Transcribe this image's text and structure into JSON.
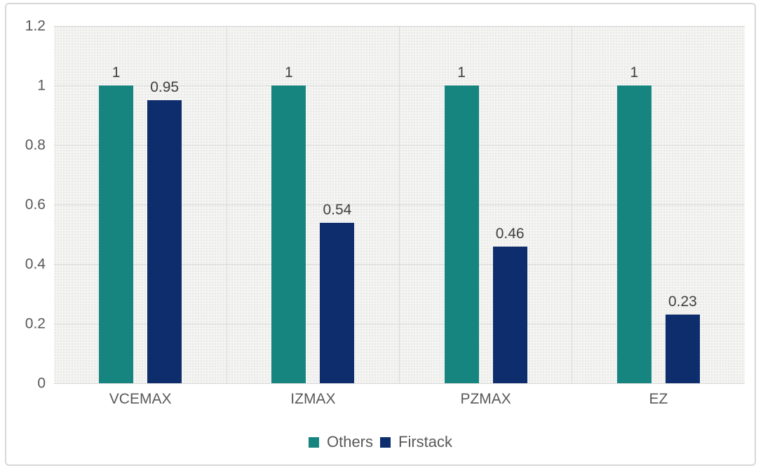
{
  "chart_data": {
    "type": "bar",
    "title": "",
    "xlabel": "",
    "ylabel": "",
    "categories": [
      "VCEMAX",
      "IZMAX",
      "PZMAX",
      "EZ"
    ],
    "series": [
      {
        "name": "Others",
        "color": "#17857F",
        "values": [
          1,
          1,
          1,
          1
        ],
        "labels": [
          "1",
          "1",
          "1",
          "1"
        ]
      },
      {
        "name": "Firstack",
        "color": "#0E2D6D",
        "values": [
          0.95,
          0.54,
          0.46,
          0.23
        ],
        "labels": [
          "0.95",
          "0.54",
          "0.46",
          "0.23"
        ]
      }
    ],
    "ylim": [
      0,
      1.2
    ],
    "yticks": [
      0,
      0.2,
      0.4,
      0.6,
      0.8,
      1,
      1.2
    ],
    "ytick_labels": [
      "0",
      "0.2",
      "0.4",
      "0.6",
      "0.8",
      "1",
      "1.2"
    ],
    "grid": true,
    "legend_position": "bottom"
  },
  "colors": {
    "plot_background": "#F4F4F3",
    "gridline": "#D9D9D9",
    "frame_border": "#D8D8D8",
    "tick_text": "#595959",
    "data_label_text": "#404040",
    "series_others": "#17857F",
    "series_firstack": "#0E2D6D"
  }
}
